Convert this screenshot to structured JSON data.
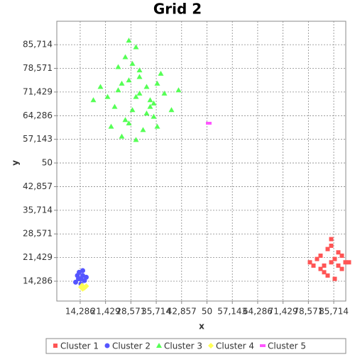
{
  "chart_data": {
    "type": "scatter",
    "title": "Grid 2",
    "x_label": "x",
    "y_label": "y",
    "xlim": [
      7.7,
      89.1
    ],
    "ylim": [
      8.3,
      92.8
    ],
    "grid": true,
    "xticks": [
      {
        "value": 14.286,
        "label": "14,286"
      },
      {
        "value": 21.429,
        "label": "21,429"
      },
      {
        "value": 28.571,
        "label": "28,571"
      },
      {
        "value": 35.714,
        "label": "35,714"
      },
      {
        "value": 42.857,
        "label": "42,857"
      },
      50,
      {
        "value": 57.143,
        "label": "57,143"
      },
      {
        "value": 64.286,
        "label": "64,286"
      },
      {
        "value": 71.429,
        "label": "71,429"
      },
      {
        "value": 78.571,
        "label": "78,571"
      },
      {
        "value": 85.714,
        "label": "85,714"
      }
    ],
    "yticks": [
      {
        "value": 14.286,
        "label": "14,286"
      },
      {
        "value": 21.429,
        "label": "21,429"
      },
      {
        "value": 28.571,
        "label": "28,571"
      },
      {
        "value": 35.714,
        "label": "35,714"
      },
      {
        "value": 42.857,
        "label": "42,857"
      },
      50,
      {
        "value": 57.143,
        "label": "57,143"
      },
      {
        "value": 64.286,
        "label": "64,286"
      },
      {
        "value": 71.429,
        "label": "71,429"
      },
      {
        "value": 78.571,
        "label": "78,571"
      },
      {
        "value": 85.714,
        "label": "85,714"
      }
    ],
    "series": [
      {
        "name": "Cluster 1",
        "color": "#ff5555",
        "marker": "square",
        "x": [
          85,
          82,
          88,
          80,
          87,
          84,
          86,
          83,
          89,
          81,
          85,
          87,
          84,
          86,
          83,
          82,
          88,
          85,
          90,
          79
        ],
        "values": [
          20,
          22,
          18,
          19,
          23,
          16,
          21,
          17,
          20,
          21,
          25,
          19,
          24,
          15,
          19,
          18,
          22,
          27,
          20,
          20
        ]
      },
      {
        "name": "Cluster 2",
        "color": "#5555ff",
        "marker": "circle",
        "x": [
          14.5,
          13.5,
          15.5,
          14,
          15,
          13,
          16,
          14.5,
          15,
          13.8
        ],
        "values": [
          15,
          16,
          14.5,
          17,
          16,
          14,
          15.5,
          13.5,
          17.5,
          15
        ]
      },
      {
        "name": "Cluster 3",
        "color": "#55ff55",
        "marker": "triangle",
        "x": [
          30,
          25,
          35,
          28,
          33,
          22,
          38,
          27,
          31,
          36,
          24,
          29,
          32,
          20,
          40,
          26,
          34,
          30,
          28,
          37,
          23,
          31,
          35,
          27,
          42,
          18,
          30,
          33,
          25,
          29,
          31,
          26,
          34,
          36,
          28
        ],
        "values": [
          70,
          72,
          68,
          75,
          65,
          70,
          71,
          63,
          78,
          74,
          67,
          80,
          60,
          73,
          66,
          58,
          69,
          85,
          62,
          77,
          61,
          76,
          64,
          82,
          72,
          69,
          57,
          73,
          79,
          66,
          71,
          74,
          67,
          61,
          87
        ]
      },
      {
        "name": "Cluster 4",
        "color": "#ffff55",
        "marker": "diamond",
        "x": [
          14.5,
          15.5,
          16,
          15,
          14.8
        ],
        "values": [
          12.5,
          12.3,
          12.8,
          12,
          13
        ]
      },
      {
        "name": "Cluster 5",
        "color": "#ff55ff",
        "marker": "bar",
        "x": [
          50.5
        ],
        "values": [
          62
        ]
      }
    ]
  }
}
